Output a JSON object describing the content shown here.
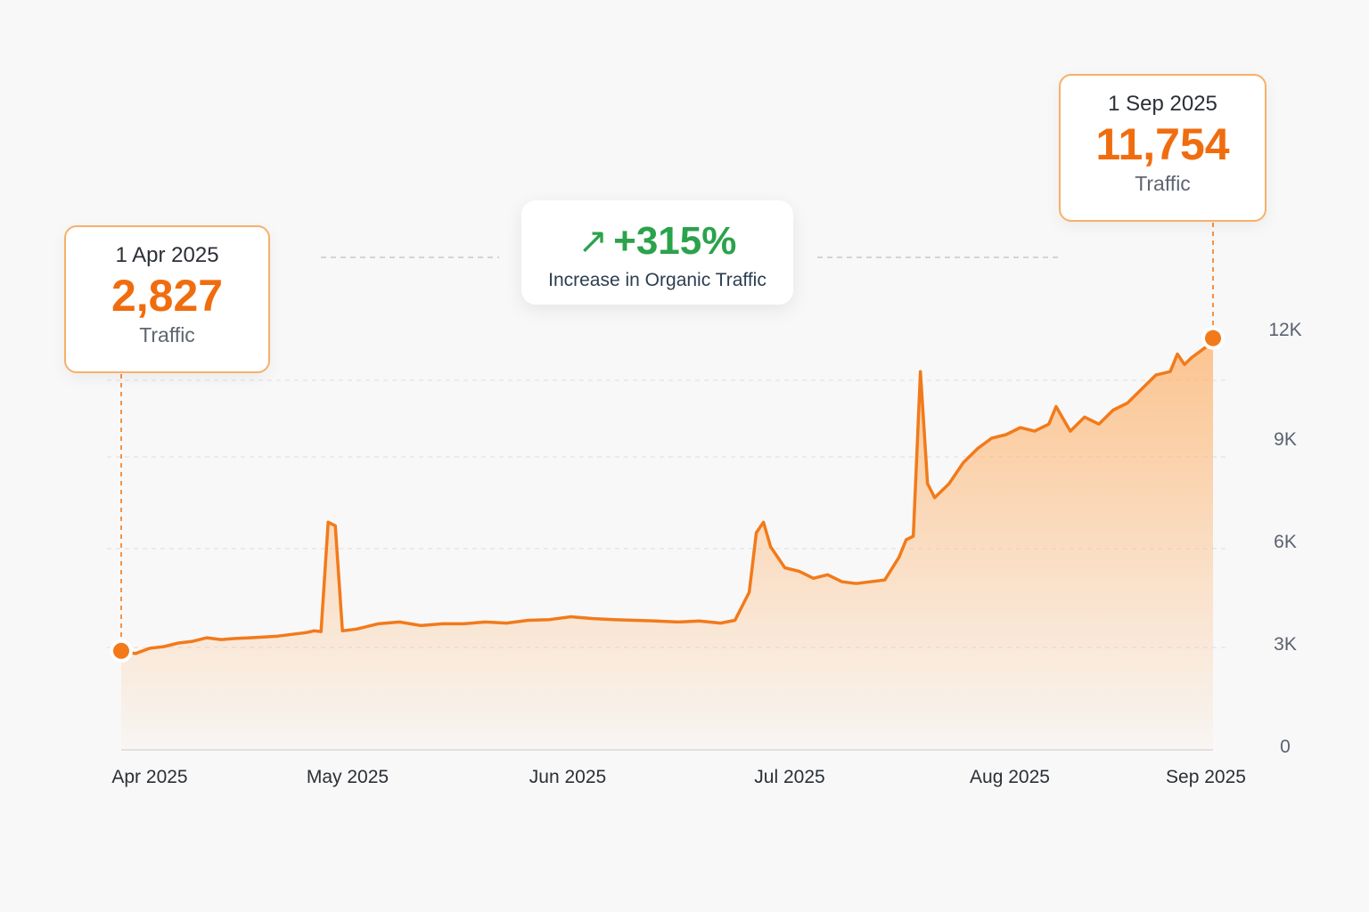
{
  "chart_data": {
    "type": "area",
    "title": "",
    "xlabel": "",
    "ylabel": "",
    "ylim": [
      0,
      12000
    ],
    "y_ticks": [
      "0",
      "3K",
      "6K",
      "9K",
      "12K"
    ],
    "y_tick_values": [
      0,
      3000,
      6000,
      9000,
      12000
    ],
    "x_ticks": [
      "Apr 2025",
      "May 2025",
      "Jun 2025",
      "Jul 2025",
      "Aug 2025",
      "Sep 2025"
    ],
    "x_tick_dates": [
      "2025-04-01",
      "2025-05-01",
      "2025-06-01",
      "2025-07-01",
      "2025-08-01",
      "2025-09-01"
    ],
    "grid": true,
    "y_axis_side": "right",
    "series": [
      {
        "color": "#f27a1a",
        "points": [
          [
            "2025-04-01",
            2827
          ],
          [
            "2025-04-03",
            2750
          ],
          [
            "2025-04-05",
            2900
          ],
          [
            "2025-04-07",
            2950
          ],
          [
            "2025-04-09",
            3050
          ],
          [
            "2025-04-11",
            3100
          ],
          [
            "2025-04-13",
            3200
          ],
          [
            "2025-04-15",
            3150
          ],
          [
            "2025-04-17",
            3180
          ],
          [
            "2025-04-19",
            3200
          ],
          [
            "2025-04-21",
            3220
          ],
          [
            "2025-04-23",
            3250
          ],
          [
            "2025-04-25",
            3300
          ],
          [
            "2025-04-27",
            3350
          ],
          [
            "2025-04-28",
            3400
          ],
          [
            "2025-04-29",
            3380
          ],
          [
            "2025-04-30",
            6500
          ],
          [
            "2025-05-01",
            6400
          ],
          [
            "2025-05-02",
            3400
          ],
          [
            "2025-05-04",
            3450
          ],
          [
            "2025-05-07",
            3600
          ],
          [
            "2025-05-10",
            3650
          ],
          [
            "2025-05-13",
            3550
          ],
          [
            "2025-05-16",
            3600
          ],
          [
            "2025-05-19",
            3600
          ],
          [
            "2025-05-22",
            3650
          ],
          [
            "2025-05-25",
            3620
          ],
          [
            "2025-05-28",
            3700
          ],
          [
            "2025-05-31",
            3720
          ],
          [
            "2025-06-03",
            3800
          ],
          [
            "2025-06-06",
            3750
          ],
          [
            "2025-06-09",
            3720
          ],
          [
            "2025-06-12",
            3700
          ],
          [
            "2025-06-15",
            3680
          ],
          [
            "2025-06-18",
            3650
          ],
          [
            "2025-06-21",
            3680
          ],
          [
            "2025-06-24",
            3620
          ],
          [
            "2025-06-26",
            3700
          ],
          [
            "2025-06-28",
            4500
          ],
          [
            "2025-06-29",
            6200
          ],
          [
            "2025-06-30",
            6500
          ],
          [
            "2025-07-01",
            5800
          ],
          [
            "2025-07-03",
            5200
          ],
          [
            "2025-07-05",
            5100
          ],
          [
            "2025-07-07",
            4900
          ],
          [
            "2025-07-09",
            5000
          ],
          [
            "2025-07-11",
            4800
          ],
          [
            "2025-07-13",
            4750
          ],
          [
            "2025-07-15",
            4800
          ],
          [
            "2025-07-17",
            4850
          ],
          [
            "2025-07-19",
            5500
          ],
          [
            "2025-07-20",
            6000
          ],
          [
            "2025-07-21",
            6100
          ],
          [
            "2025-07-22",
            10800
          ],
          [
            "2025-07-23",
            7600
          ],
          [
            "2025-07-24",
            7200
          ],
          [
            "2025-07-26",
            7600
          ],
          [
            "2025-07-28",
            8200
          ],
          [
            "2025-07-30",
            8600
          ],
          [
            "2025-08-01",
            8900
          ],
          [
            "2025-08-03",
            9000
          ],
          [
            "2025-08-05",
            9200
          ],
          [
            "2025-08-07",
            9100
          ],
          [
            "2025-08-09",
            9300
          ],
          [
            "2025-08-10",
            9800
          ],
          [
            "2025-08-12",
            9100
          ],
          [
            "2025-08-14",
            9500
          ],
          [
            "2025-08-16",
            9300
          ],
          [
            "2025-08-18",
            9700
          ],
          [
            "2025-08-20",
            9900
          ],
          [
            "2025-08-22",
            10300
          ],
          [
            "2025-08-24",
            10700
          ],
          [
            "2025-08-26",
            10800
          ],
          [
            "2025-08-27",
            11300
          ],
          [
            "2025-08-28",
            11000
          ],
          [
            "2025-08-29",
            11200
          ],
          [
            "2025-08-30",
            11350
          ],
          [
            "2025-08-31",
            11500
          ],
          [
            "2025-09-01",
            11754
          ]
        ]
      }
    ],
    "annotations": [
      {
        "date": "1 Apr 2025",
        "value": "2,827",
        "label": "Traffic"
      },
      {
        "date": "1 Sep 2025",
        "value": "11,754",
        "label": "Traffic"
      }
    ]
  },
  "callouts": {
    "start": {
      "date": "1 Apr 2025",
      "value": "2,827",
      "label": "Traffic"
    },
    "end": {
      "date": "1 Sep 2025",
      "value": "11,754",
      "label": "Traffic"
    }
  },
  "increase": {
    "arrow_icon": "trend-up-arrow-icon",
    "arrow_glyph": "↗",
    "value": "+315%",
    "label": "Increase in Organic Traffic",
    "color": "#2ba24c"
  },
  "colors": {
    "accent": "#f27a1a",
    "value_text": "#f06d0f",
    "callout_border": "#f7b06b"
  }
}
